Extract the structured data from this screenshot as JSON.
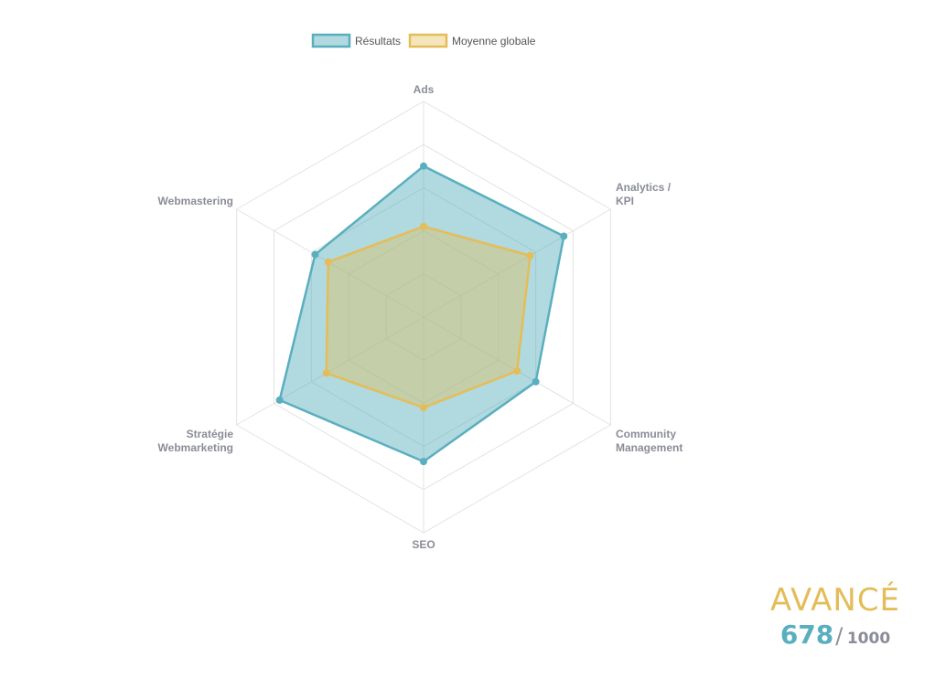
{
  "chart_data": {
    "type": "radar",
    "axes": [
      "Ads",
      "Analytics / KPI",
      "Community Management",
      "SEO",
      "Stratégie Webmarketing",
      "Webmastering"
    ],
    "axis_label_lines": [
      [
        "Ads"
      ],
      [
        "Analytics /",
        "KPI"
      ],
      [
        "Community",
        "Management"
      ],
      [
        "SEO"
      ],
      [
        "Stratégie",
        "Webmarketing"
      ],
      [
        "Webmastering"
      ]
    ],
    "range": [
      0,
      100
    ],
    "grid_levels": 5,
    "legend_position": "top",
    "series": [
      {
        "name": "Résultats",
        "values": [
          70,
          75,
          60,
          67,
          77,
          58
        ],
        "color": "#5aafbf",
        "fill": "rgba(90,175,191,0.48)"
      },
      {
        "name": "Moyenne globale",
        "values": [
          42,
          57,
          50,
          42,
          52,
          51
        ],
        "color": "#e4bd58",
        "fill": "rgba(228,189,88,0.40)"
      }
    ]
  },
  "score": {
    "level": "AVANCÉ",
    "value": "678",
    "separator": "/",
    "max": "1000"
  }
}
